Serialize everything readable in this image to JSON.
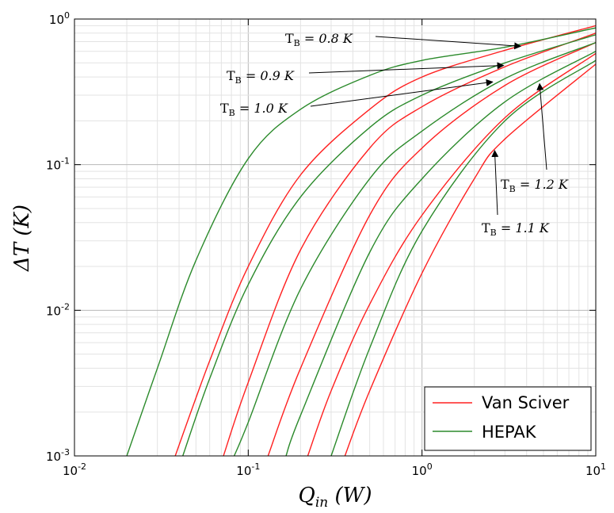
{
  "chart_data": {
    "type": "line",
    "xscale": "log",
    "yscale": "log",
    "xlim": [
      0.01,
      10
    ],
    "ylim": [
      0.001,
      1
    ],
    "xlabel": "Q_in (W)",
    "ylabel": "ΔT (K)",
    "x_ticks": [
      {
        "value": 0.01,
        "base": "10",
        "exp": "-2"
      },
      {
        "value": 0.1,
        "base": "10",
        "exp": "-1"
      },
      {
        "value": 1,
        "base": "10",
        "exp": "0"
      },
      {
        "value": 10,
        "base": "10",
        "exp": "1"
      }
    ],
    "y_ticks": [
      {
        "value": 0.001,
        "base": "10",
        "exp": "-3"
      },
      {
        "value": 0.01,
        "base": "10",
        "exp": "-2"
      },
      {
        "value": 0.1,
        "base": "10",
        "exp": "-1"
      },
      {
        "value": 1,
        "base": "10",
        "exp": "0"
      }
    ],
    "grid": true,
    "legend": {
      "placement": "lower-right",
      "entries": [
        {
          "label": "Van Sciver",
          "color": "#ff2020"
        },
        {
          "label": "HEPAK",
          "color": "#2b8a2b"
        }
      ]
    },
    "series": [
      {
        "name": "Van Sciver",
        "color": "#ff2020",
        "x": [
          0.038,
          0.06,
          0.1,
          0.2,
          0.5,
          1,
          3,
          10
        ],
        "y": [
          0.001,
          0.0045,
          0.02,
          0.085,
          0.24,
          0.4,
          0.61,
          0.9
        ]
      },
      {
        "name": "HEPAK",
        "color": "#2b8a2b",
        "x": [
          0.02,
          0.03,
          0.05,
          0.1,
          0.2,
          0.5,
          1,
          3,
          10
        ],
        "y": [
          0.001,
          0.004,
          0.022,
          0.11,
          0.24,
          0.41,
          0.52,
          0.64,
          0.87
        ]
      },
      {
        "name": "Van Sciver",
        "color": "#ff2020",
        "x": [
          0.072,
          0.1,
          0.2,
          0.5,
          1,
          3,
          10
        ],
        "y": [
          0.001,
          0.0032,
          0.026,
          0.13,
          0.25,
          0.47,
          0.8
        ]
      },
      {
        "name": "HEPAK",
        "color": "#2b8a2b",
        "x": [
          0.042,
          0.06,
          0.1,
          0.2,
          0.5,
          1,
          3,
          10
        ],
        "y": [
          0.001,
          0.0034,
          0.015,
          0.06,
          0.18,
          0.3,
          0.5,
          0.78
        ]
      },
      {
        "name": "Van Sciver",
        "color": "#ff2020",
        "x": [
          0.13,
          0.2,
          0.5,
          1,
          3,
          10
        ],
        "y": [
          0.001,
          0.004,
          0.045,
          0.13,
          0.35,
          0.69
        ]
      },
      {
        "name": "HEPAK",
        "color": "#2b8a2b",
        "x": [
          0.083,
          0.1,
          0.2,
          0.5,
          1,
          3,
          10
        ],
        "y": [
          0.001,
          0.0017,
          0.014,
          0.08,
          0.17,
          0.39,
          0.69
        ]
      },
      {
        "name": "Van Sciver",
        "color": "#ff2020",
        "x": [
          0.22,
          0.3,
          0.5,
          1,
          3,
          10
        ],
        "y": [
          0.001,
          0.0028,
          0.011,
          0.045,
          0.21,
          0.58
        ]
      },
      {
        "name": "HEPAK",
        "color": "#2b8a2b",
        "x": [
          0.165,
          0.2,
          0.5,
          1,
          3,
          10
        ],
        "y": [
          0.001,
          0.0019,
          0.025,
          0.08,
          0.27,
          0.6
        ]
      },
      {
        "name": "Van Sciver",
        "color": "#ff2020",
        "x": [
          0.36,
          0.5,
          1,
          2,
          3,
          10
        ],
        "y": [
          0.001,
          0.0028,
          0.018,
          0.08,
          0.15,
          0.49
        ]
      },
      {
        "name": "HEPAK",
        "color": "#2b8a2b",
        "x": [
          0.3,
          0.5,
          1,
          3,
          10
        ],
        "y": [
          0.001,
          0.0055,
          0.035,
          0.2,
          0.52
        ]
      }
    ],
    "annotations": [
      {
        "text": "T",
        "sub": "B",
        "value": " = 0.8 K",
        "tip_x": 3.7,
        "tip_y": 0.65
      },
      {
        "text": "T",
        "sub": "B",
        "value": " = 0.9 K",
        "tip_x": 2.95,
        "tip_y": 0.48
      },
      {
        "text": "T",
        "sub": "B",
        "value": " = 1.0 K",
        "tip_x": 2.55,
        "tip_y": 0.37
      },
      {
        "text": "T",
        "sub": "B",
        "value": " = 1.2 K",
        "tip_x": 4.75,
        "tip_y": 0.36
      },
      {
        "text": "T",
        "sub": "B",
        "value": " = 1.1 K",
        "tip_x": 2.62,
        "tip_y": 0.125
      }
    ]
  }
}
